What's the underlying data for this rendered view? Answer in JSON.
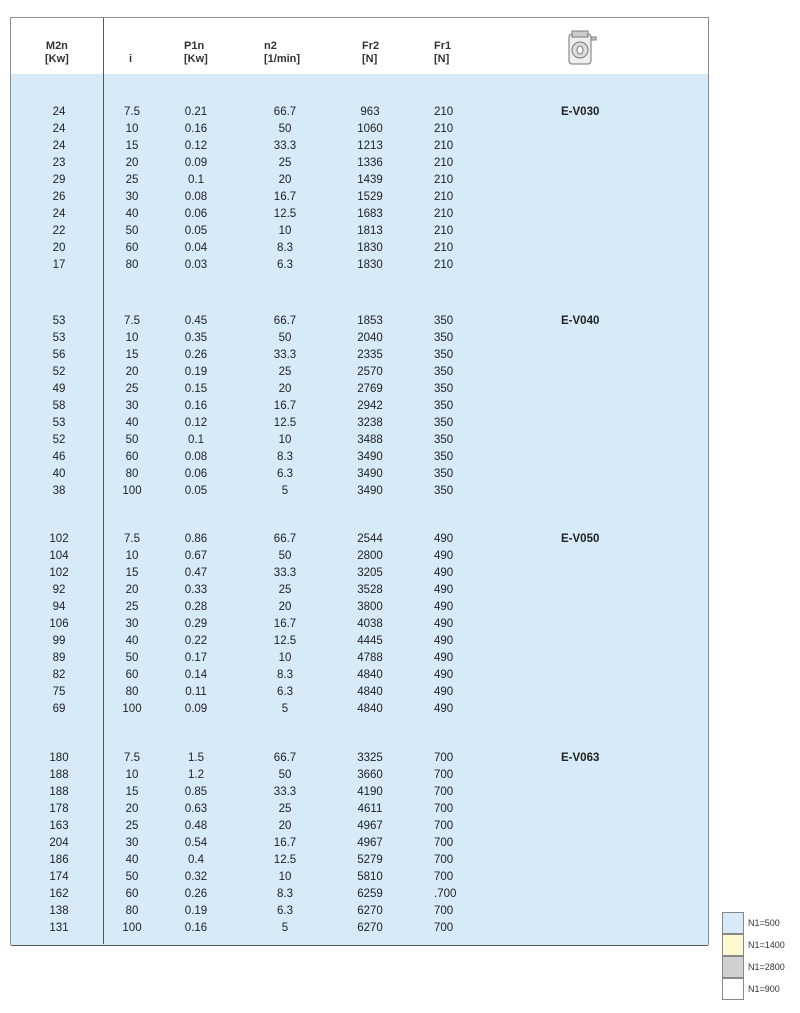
{
  "headers": [
    {
      "l1": "M2n",
      "l2": "[Kw]"
    },
    {
      "l1": "",
      "l2": "i"
    },
    {
      "l1": "P1n",
      "l2": "[Kw]"
    },
    {
      "l1": "n2",
      "l2": "[1/min]"
    },
    {
      "l1": "Fr2",
      "l2": "[N]"
    },
    {
      "l1": "Fr1",
      "l2": "[N]"
    }
  ],
  "header_icon": "gearbox-icon",
  "sections": [
    {
      "model": "E-V030",
      "color": "#d6eaf8",
      "rows": [
        [
          "24",
          "7.5",
          "0.21",
          "66.7",
          "963",
          "210"
        ],
        [
          "24",
          "10",
          "0.16",
          "50",
          "1060",
          "210"
        ],
        [
          "24",
          "15",
          "0.12",
          "33.3",
          "1213",
          "210"
        ],
        [
          "23",
          "20",
          "0.09",
          "25",
          "1336",
          "210"
        ],
        [
          "29",
          "25",
          "0.1",
          "20",
          "1439",
          "210"
        ],
        [
          "26",
          "30",
          "0.08",
          "16.7",
          "1529",
          "210"
        ],
        [
          "24",
          "40",
          "0.06",
          "12.5",
          "1683",
          "210"
        ],
        [
          "22",
          "50",
          "0.05",
          "10",
          "1813",
          "210"
        ],
        [
          "20",
          "60",
          "0.04",
          "8.3",
          "1830",
          "210"
        ],
        [
          "17",
          "80",
          "0.03",
          "6.3",
          "1830",
          "210"
        ]
      ]
    },
    {
      "model": "E-V040",
      "color": "#d6eaf8",
      "rows": [
        [
          "53",
          "7.5",
          "0.45",
          "66.7",
          "1853",
          "350"
        ],
        [
          "53",
          "10",
          "0.35",
          "50",
          "2040",
          "350"
        ],
        [
          "56",
          "15",
          "0.26",
          "33.3",
          "2335",
          "350"
        ],
        [
          "52",
          "20",
          "0.19",
          "25",
          "2570",
          "350"
        ],
        [
          "49",
          "25",
          "0.15",
          "20",
          "2769",
          "350"
        ],
        [
          "58",
          "30",
          "0.16",
          "16.7",
          "2942",
          "350"
        ],
        [
          "53",
          "40",
          "0.12",
          "12.5",
          "3238",
          "350"
        ],
        [
          "52",
          "50",
          "0.1",
          "10",
          "3488",
          "350"
        ],
        [
          "46",
          "60",
          "0.08",
          "8.3",
          "3490",
          "350"
        ],
        [
          "40",
          "80",
          "0.06",
          "6.3",
          "3490",
          "350"
        ],
        [
          "38",
          "100",
          "0.05",
          "5",
          "3490",
          "350"
        ]
      ]
    },
    {
      "model": "E-V050",
      "color": "#d6eaf8",
      "rows": [
        [
          "102",
          "7.5",
          "0.86",
          "66.7",
          "2544",
          "490"
        ],
        [
          "104",
          "10",
          "0.67",
          "50",
          "2800",
          "490"
        ],
        [
          "102",
          "15",
          "0.47",
          "33.3",
          "3205",
          "490"
        ],
        [
          "92",
          "20",
          "0.33",
          "25",
          "3528",
          "490"
        ],
        [
          "94",
          "25",
          "0.28",
          "20",
          "3800",
          "490"
        ],
        [
          "106",
          "30",
          "0.29",
          "16.7",
          "4038",
          "490"
        ],
        [
          "99",
          "40",
          "0.22",
          "12.5",
          "4445",
          "490"
        ],
        [
          "89",
          "50",
          "0.17",
          "10",
          "4788",
          "490"
        ],
        [
          "82",
          "60",
          "0.14",
          "8.3",
          "4840",
          "490"
        ],
        [
          "75",
          "80",
          "0.11",
          "6.3",
          "4840",
          "490"
        ],
        [
          "69",
          "100",
          "0.09",
          "5",
          "4840",
          "490"
        ]
      ]
    },
    {
      "model": "E-V063",
      "color": "#d6eaf8",
      "rows": [
        [
          "180",
          "7.5",
          "1.5",
          "66.7",
          "3325",
          "700"
        ],
        [
          "188",
          "10",
          "1.2",
          "50",
          "3660",
          "700"
        ],
        [
          "188",
          "15",
          "0.85",
          "33.3",
          "4190",
          "700"
        ],
        [
          "178",
          "20",
          "0.63",
          "25",
          "4611",
          "700"
        ],
        [
          "163",
          "25",
          "0.48",
          "20",
          "4967",
          "700"
        ],
        [
          "204",
          "30",
          "0.54",
          "16.7",
          "4967",
          "700"
        ],
        [
          "186",
          "40",
          "0.4",
          "12.5",
          "5279",
          "700"
        ],
        [
          "174",
          "50",
          "0.32",
          "10",
          "5810",
          "700"
        ],
        [
          "162",
          "60",
          "0.26",
          "8.3",
          "6259",
          ".700"
        ],
        [
          "138",
          "80",
          "0.19",
          "6.3",
          "6270",
          "700"
        ],
        [
          "131",
          "100",
          "0.16",
          "5",
          "6270",
          "700"
        ]
      ]
    }
  ],
  "legend": [
    {
      "label": "N1=500",
      "color": "#d6eaf8"
    },
    {
      "label": "N1=1400",
      "color": "#fdf8d0"
    },
    {
      "label": "N1=2800",
      "color": "#d0d0d2"
    },
    {
      "label": "N1=900",
      "color": "#ffffff"
    }
  ]
}
